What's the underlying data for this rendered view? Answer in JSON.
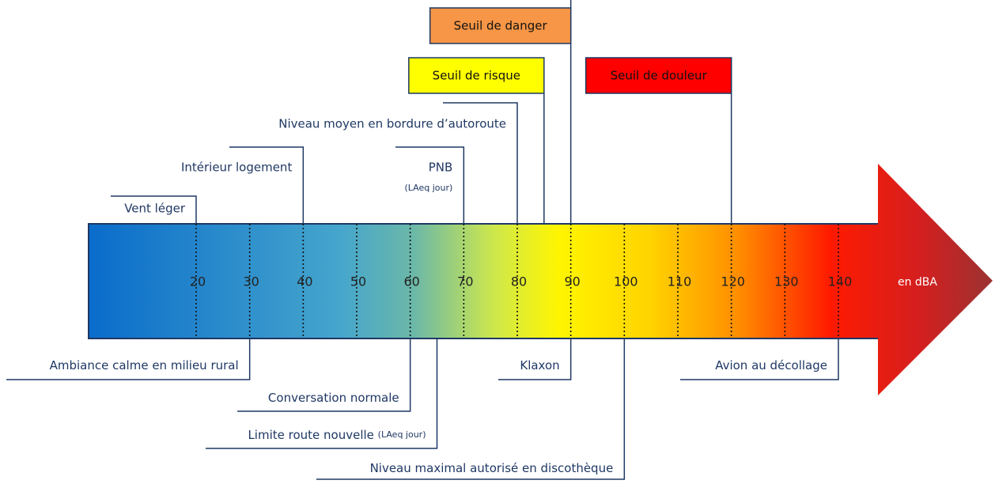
{
  "scale": {
    "ticks": [
      20,
      30,
      40,
      50,
      60,
      70,
      80,
      90,
      100,
      110,
      120,
      130,
      140
    ],
    "unit": "en dBA"
  },
  "above": [
    {
      "label": "Vent léger",
      "level": 20
    },
    {
      "label": "Intérieur logement",
      "level": 40
    },
    {
      "label": "Niveau moyen en bordure d’autoroute",
      "level": 80
    },
    {
      "label": "PNB",
      "sublabel": "(LAeq jour)",
      "level": 70
    }
  ],
  "thresholds": [
    {
      "label": "Seuil de risque",
      "level": 85,
      "color": "#ffff00"
    },
    {
      "label": "Seuil de danger",
      "level": 90,
      "color": "#f79646"
    },
    {
      "label": "Seuil de  douleur",
      "level": 120,
      "color": "#ff0000"
    }
  ],
  "below": [
    {
      "label": "Ambiance calme en milieu rural",
      "level": 30
    },
    {
      "label": "Conversation normale",
      "level": 60
    },
    {
      "label": "Limite route nouvelle",
      "sublabel": "(LAeq jour)",
      "level": 65
    },
    {
      "label": "Klaxon",
      "level": 90
    },
    {
      "label": "Niveau maximal autorisé en discothèque",
      "level": 100
    },
    {
      "label": "Avion au décollage",
      "level": 140
    }
  ]
}
